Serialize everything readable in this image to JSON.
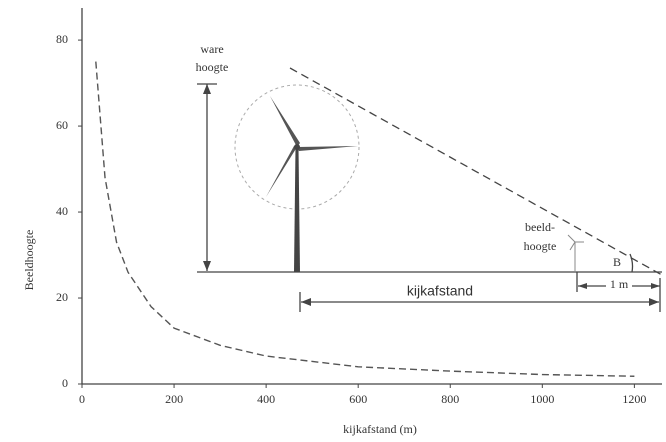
{
  "chart_data": {
    "type": "line",
    "x_label": "kijkafstand (m)",
    "y_label": "Beeldhoogte",
    "x": [
      30,
      50,
      75,
      100,
      150,
      200,
      300,
      400,
      600,
      800,
      1000,
      1200
    ],
    "series": [
      {
        "color": "#555555",
        "values": [
          75,
          48,
          33,
          26,
          18,
          13,
          9,
          6.5,
          4,
          3,
          2.2,
          1.8
        ]
      }
    ],
    "line_style": "dashed",
    "xlim": [
      0,
      1260
    ],
    "ylim": [
      0,
      87
    ],
    "xticks": [
      0,
      200,
      400,
      600,
      800,
      1000,
      1200
    ],
    "yticks": [
      0,
      20,
      40,
      60,
      80
    ],
    "annotations": {
      "true_height": [
        "ware",
        "hoogte"
      ],
      "image_height": [
        "beeld-",
        "hoogte"
      ],
      "angle": "B",
      "one_meter": "1 m",
      "distance": "kijkafstand"
    }
  }
}
